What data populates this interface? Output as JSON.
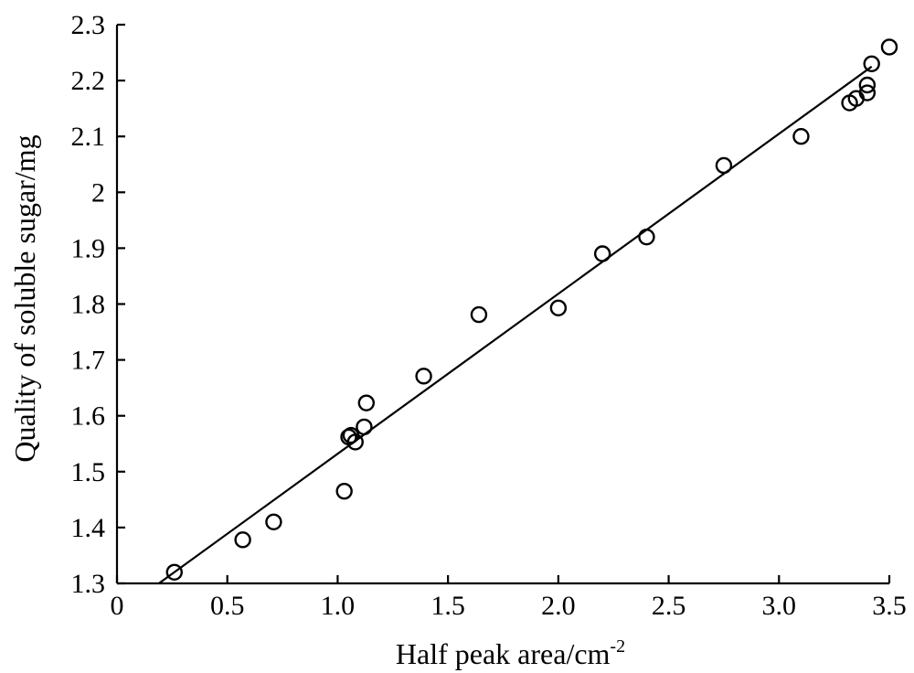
{
  "chart_data": {
    "type": "scatter",
    "title": "",
    "xlabel": "Half peak area/cm",
    "xlabel_superscript": "-2",
    "ylabel": "Quality of soluble sugar/mg",
    "xlim": [
      0,
      3.5
    ],
    "ylim": [
      1.3,
      2.3
    ],
    "xticks": [
      "0",
      "0.5",
      "1.0",
      "1.5",
      "2.0",
      "2.5",
      "3.0",
      "3.5"
    ],
    "xtick_values": [
      0,
      0.5,
      1.0,
      1.5,
      2.0,
      2.5,
      3.0,
      3.5
    ],
    "yticks": [
      "1.3",
      "1.4",
      "1.5",
      "1.6",
      "1.7",
      "1.8",
      "1.9",
      "2",
      "2.1",
      "2.2",
      "2.3"
    ],
    "ytick_values": [
      1.3,
      1.4,
      1.5,
      1.6,
      1.7,
      1.8,
      1.9,
      2.0,
      2.1,
      2.2,
      2.3
    ],
    "grid": false,
    "legend": "none",
    "points": [
      {
        "x": 0.26,
        "y": 1.32
      },
      {
        "x": 0.57,
        "y": 1.378
      },
      {
        "x": 0.71,
        "y": 1.41
      },
      {
        "x": 1.03,
        "y": 1.465
      },
      {
        "x": 1.05,
        "y": 1.562
      },
      {
        "x": 1.06,
        "y": 1.565
      },
      {
        "x": 1.08,
        "y": 1.553
      },
      {
        "x": 1.12,
        "y": 1.58
      },
      {
        "x": 1.13,
        "y": 1.623
      },
      {
        "x": 1.39,
        "y": 1.671
      },
      {
        "x": 1.64,
        "y": 1.781
      },
      {
        "x": 2.0,
        "y": 1.793
      },
      {
        "x": 2.2,
        "y": 1.89
      },
      {
        "x": 2.4,
        "y": 1.92
      },
      {
        "x": 2.75,
        "y": 2.048
      },
      {
        "x": 3.1,
        "y": 2.1
      },
      {
        "x": 3.32,
        "y": 2.16
      },
      {
        "x": 3.35,
        "y": 2.168
      },
      {
        "x": 3.4,
        "y": 2.178
      },
      {
        "x": 3.4,
        "y": 2.192
      },
      {
        "x": 3.42,
        "y": 2.23
      },
      {
        "x": 3.5,
        "y": 2.26
      }
    ],
    "fit_line": {
      "x": [
        0.19,
        3.42
      ],
      "y": [
        1.3,
        2.225
      ]
    }
  }
}
